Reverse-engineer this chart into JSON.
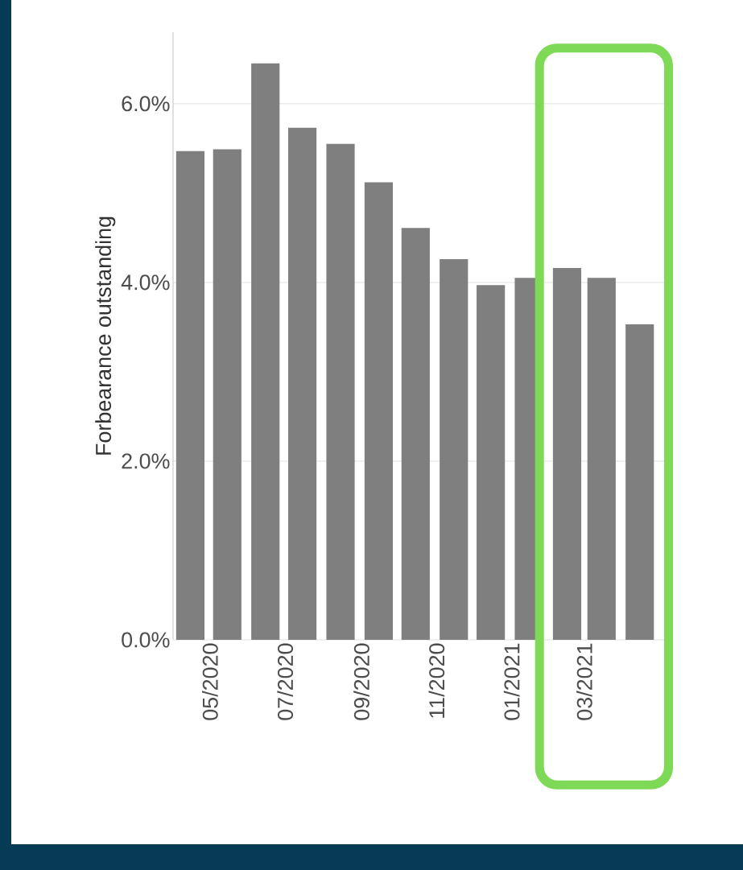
{
  "chart_data": {
    "type": "bar",
    "ylabel": "Forbearance outstanding",
    "x": [
      "2020-04-15",
      "2020-05-15",
      "2020-06-15",
      "2020-07-15",
      "2020-08-15",
      "2020-09-15",
      "2020-10-15",
      "2020-11-15",
      "2020-12-15",
      "2021-01-15",
      "2021-02-15",
      "2021-03-15",
      "2021-04-15"
    ],
    "values": [
      5.47,
      5.49,
      6.45,
      5.73,
      5.55,
      5.12,
      4.61,
      4.26,
      3.97,
      4.05,
      4.16,
      4.05,
      3.53
    ],
    "color": "#7f7f7f",
    "xlim": [
      "2020-04-01",
      "2021-05-12"
    ],
    "xticks": [
      {
        "value": "2020-05-01",
        "label": "05/2020"
      },
      {
        "value": "2020-07-01",
        "label": "07/2020"
      },
      {
        "value": "2020-09-01",
        "label": "09/2020"
      },
      {
        "value": "2020-11-01",
        "label": "11/2020"
      },
      {
        "value": "2021-01-01",
        "label": "01/2021"
      },
      {
        "value": "2021-03-01",
        "label": "03/2021"
      }
    ],
    "ylim": [
      0,
      6.8
    ],
    "yticks": [
      {
        "value": 0,
        "label": "0.0%"
      },
      {
        "value": 2,
        "label": "2.0%"
      },
      {
        "value": 4,
        "label": "4.0%"
      },
      {
        "value": 6,
        "label": "6.0%"
      }
    ],
    "grid": "y",
    "bands": [
      {
        "axis": "x",
        "from": "2021-01-20",
        "to": "2021-05-12",
        "color": "#7ed957"
      }
    ]
  }
}
